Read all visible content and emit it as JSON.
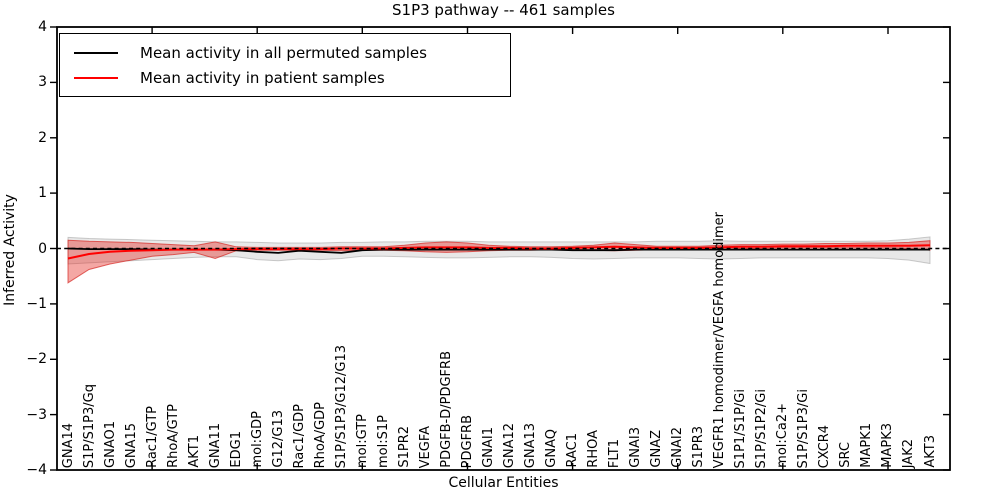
{
  "figure": {
    "title": "S1P3 pathway -- 461 samples",
    "xlabel": "Cellular Entities",
    "ylabel": "Inferred Activity"
  },
  "legend": {
    "entries": [
      {
        "label": "Mean activity in all permuted samples",
        "color": "#000000"
      },
      {
        "label": "Mean activity in patient samples",
        "color": "#ff0000"
      }
    ]
  },
  "chart_data": {
    "type": "line",
    "title": "S1P3 pathway -- 461 samples",
    "xlabel": "Cellular Entities",
    "ylabel": "Inferred Activity",
    "ylim": [
      -4,
      4
    ],
    "yticks": [
      4,
      3,
      2,
      1,
      0,
      -1,
      -2,
      -3,
      -4
    ],
    "ytick_labels": [
      "4",
      "3",
      "2",
      "1",
      "0",
      "−1",
      "−2",
      "−3",
      "−4"
    ],
    "grid": false,
    "legend_position": "upper left",
    "zero_line": {
      "y": 0,
      "style": "dashed",
      "color": "#000000"
    },
    "x_major_tick_indices": [
      4,
      9,
      14,
      19,
      24,
      29,
      34,
      39
    ],
    "categories": [
      "GNA14",
      "S1P/S1P3/Gq",
      "GNAO1",
      "GNA15",
      "Rac1/GTP",
      "RhoA/GTP",
      "AKT1",
      "GNA11",
      "EDG1",
      "mol:GDP",
      "G12/G13",
      "Rac1/GDP",
      "RhoA/GDP",
      "S1P/S1P3/G12/G13",
      "mol:GTP",
      "mol:S1P",
      "S1PR2",
      "VEGFA",
      "PDGFB-D/PDGFRB",
      "PDGFRB",
      "GNAI1",
      "GNA12",
      "GNA13",
      "GNAQ",
      "RAC1",
      "RHOA",
      "FLT1",
      "GNAI3",
      "GNAZ",
      "GNAI2",
      "S1PR3",
      "VEGFR1 homodimer/VEGFA homodimer",
      "S1P1/S1P/Gi",
      "S1P/S1P2/Gi",
      "mol:Ca2+",
      "S1P/S1P3/Gi",
      "CXCR4",
      "SRC",
      "MAPK1",
      "MAPK3",
      "JAK2",
      "AKT3"
    ],
    "series": [
      {
        "name": "Permuted samples band",
        "type": "band",
        "fill": "rgba(130,130,130,0.18)",
        "edge": "rgba(130,130,130,0.40)",
        "lower": [
          -0.28,
          -0.26,
          -0.24,
          -0.22,
          -0.2,
          -0.18,
          -0.16,
          -0.15,
          -0.15,
          -0.2,
          -0.22,
          -0.19,
          -0.2,
          -0.18,
          -0.14,
          -0.14,
          -0.15,
          -0.16,
          -0.17,
          -0.17,
          -0.16,
          -0.15,
          -0.15,
          -0.16,
          -0.18,
          -0.19,
          -0.18,
          -0.17,
          -0.17,
          -0.17,
          -0.18,
          -0.19,
          -0.18,
          -0.17,
          -0.17,
          -0.17,
          -0.17,
          -0.17,
          -0.17,
          -0.18,
          -0.21,
          -0.27
        ],
        "upper": [
          0.2,
          0.18,
          0.17,
          0.16,
          0.15,
          0.14,
          0.13,
          0.12,
          0.12,
          0.11,
          0.1,
          0.1,
          0.1,
          0.11,
          0.11,
          0.12,
          0.12,
          0.13,
          0.13,
          0.13,
          0.12,
          0.12,
          0.12,
          0.12,
          0.12,
          0.12,
          0.12,
          0.12,
          0.13,
          0.13,
          0.13,
          0.14,
          0.13,
          0.13,
          0.13,
          0.13,
          0.13,
          0.13,
          0.13,
          0.14,
          0.17,
          0.21
        ]
      },
      {
        "name": "Patient samples band",
        "type": "band",
        "fill": "rgba(228,45,38,0.42)",
        "edge": "rgba(214,39,34,0.70)",
        "lower": [
          -0.62,
          -0.38,
          -0.28,
          -0.21,
          -0.14,
          -0.11,
          -0.07,
          -0.18,
          -0.04,
          -0.03,
          -0.03,
          -0.03,
          -0.03,
          -0.04,
          -0.03,
          -0.03,
          -0.04,
          -0.06,
          -0.07,
          -0.06,
          -0.04,
          -0.03,
          -0.03,
          -0.02,
          -0.02,
          -0.03,
          -0.04,
          -0.03,
          -0.02,
          -0.01,
          -0.01,
          -0.02,
          0.0,
          0.0,
          0.01,
          0.01,
          0.01,
          0.01,
          0.01,
          0.01,
          0.0,
          -0.03
        ],
        "upper": [
          0.15,
          0.13,
          0.12,
          0.11,
          0.09,
          0.07,
          0.05,
          0.12,
          0.03,
          0.02,
          0.02,
          0.02,
          0.02,
          0.03,
          0.03,
          0.03,
          0.06,
          0.1,
          0.12,
          0.1,
          0.06,
          0.04,
          0.03,
          0.03,
          0.04,
          0.06,
          0.1,
          0.07,
          0.04,
          0.04,
          0.04,
          0.06,
          0.07,
          0.07,
          0.08,
          0.08,
          0.09,
          0.09,
          0.1,
          0.1,
          0.11,
          0.14
        ]
      },
      {
        "name": "Mean activity in all permuted samples",
        "type": "line",
        "color": "#000000",
        "width": 1.8,
        "values": [
          0.0,
          -0.01,
          -0.01,
          -0.01,
          -0.02,
          -0.02,
          -0.02,
          -0.02,
          -0.03,
          -0.06,
          -0.08,
          -0.04,
          -0.06,
          -0.08,
          -0.03,
          -0.02,
          -0.02,
          -0.02,
          -0.02,
          -0.02,
          -0.02,
          -0.02,
          -0.02,
          -0.02,
          -0.03,
          -0.03,
          -0.03,
          -0.02,
          -0.02,
          -0.02,
          -0.02,
          -0.02,
          -0.02,
          -0.02,
          -0.02,
          -0.02,
          -0.02,
          -0.02,
          -0.02,
          -0.02,
          -0.02,
          -0.02
        ]
      },
      {
        "name": "Mean activity in patient samples",
        "type": "line",
        "color": "#ff0000",
        "width": 2,
        "values": [
          -0.18,
          -0.1,
          -0.06,
          -0.04,
          -0.03,
          -0.02,
          -0.02,
          -0.02,
          -0.01,
          -0.01,
          -0.01,
          -0.01,
          -0.01,
          0.0,
          0.0,
          0.0,
          0.01,
          0.02,
          0.02,
          0.02,
          0.01,
          0.01,
          0.0,
          0.0,
          0.01,
          0.02,
          0.03,
          0.02,
          0.01,
          0.01,
          0.01,
          0.02,
          0.03,
          0.03,
          0.04,
          0.04,
          0.04,
          0.05,
          0.05,
          0.05,
          0.05,
          0.06
        ]
      }
    ]
  }
}
